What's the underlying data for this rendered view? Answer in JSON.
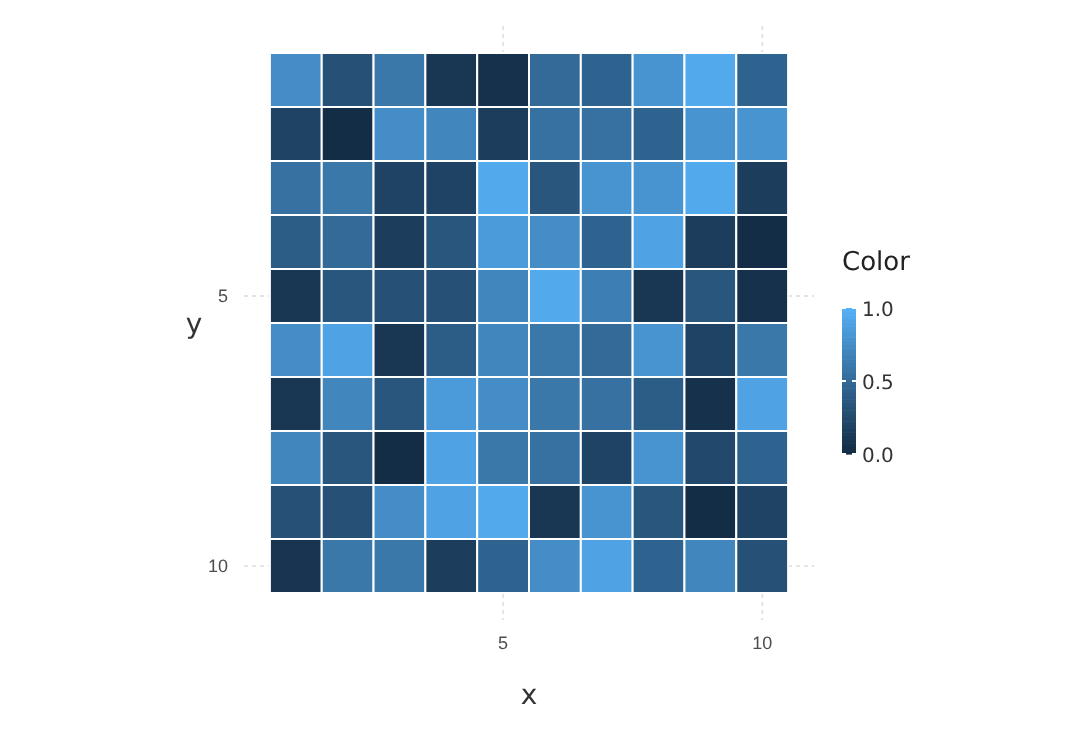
{
  "chart_data": {
    "type": "heatmap",
    "xlabel": "x",
    "ylabel": "y",
    "clabel": "Color",
    "categories": [
      null,
      null,
      null,
      null,
      "5",
      null,
      null,
      null,
      null,
      "10"
    ],
    "y_categories": [
      null,
      null,
      null,
      null,
      "5",
      null,
      null,
      null,
      null,
      "10"
    ],
    "cells": [
      [
        0.75,
        0.3,
        0.6,
        0.1,
        0.05,
        0.5,
        0.45,
        0.8,
        0.95,
        0.45
      ],
      [
        0.2,
        0.02,
        0.75,
        0.7,
        0.15,
        0.55,
        0.55,
        0.45,
        0.8,
        0.8
      ],
      [
        0.55,
        0.6,
        0.2,
        0.2,
        0.95,
        0.35,
        0.8,
        0.8,
        0.95,
        0.15
      ],
      [
        0.4,
        0.5,
        0.15,
        0.35,
        0.85,
        0.75,
        0.45,
        0.9,
        0.15,
        0.02
      ],
      [
        0.1,
        0.35,
        0.3,
        0.3,
        0.7,
        0.95,
        0.65,
        0.1,
        0.35,
        0.05
      ],
      [
        0.75,
        0.9,
        0.1,
        0.4,
        0.7,
        0.6,
        0.5,
        0.8,
        0.2,
        0.6
      ],
      [
        0.1,
        0.7,
        0.35,
        0.85,
        0.75,
        0.6,
        0.55,
        0.4,
        0.05,
        0.9
      ],
      [
        0.7,
        0.35,
        0.02,
        0.9,
        0.6,
        0.55,
        0.2,
        0.8,
        0.25,
        0.45
      ],
      [
        0.3,
        0.3,
        0.75,
        0.9,
        0.95,
        0.1,
        0.8,
        0.35,
        0.02,
        0.2
      ],
      [
        0.08,
        0.6,
        0.6,
        0.15,
        0.45,
        0.75,
        0.9,
        0.45,
        0.7,
        0.3
      ]
    ],
    "colors": [
      "#132b43",
      "#56b1f7"
    ],
    "clim": [
      0,
      1
    ],
    "cticks": [
      {
        "value": 0,
        "label": "0.0"
      },
      {
        "value": 0.5,
        "label": "0.5"
      },
      {
        "value": 1,
        "label": "1.0"
      }
    ],
    "grid": true
  }
}
